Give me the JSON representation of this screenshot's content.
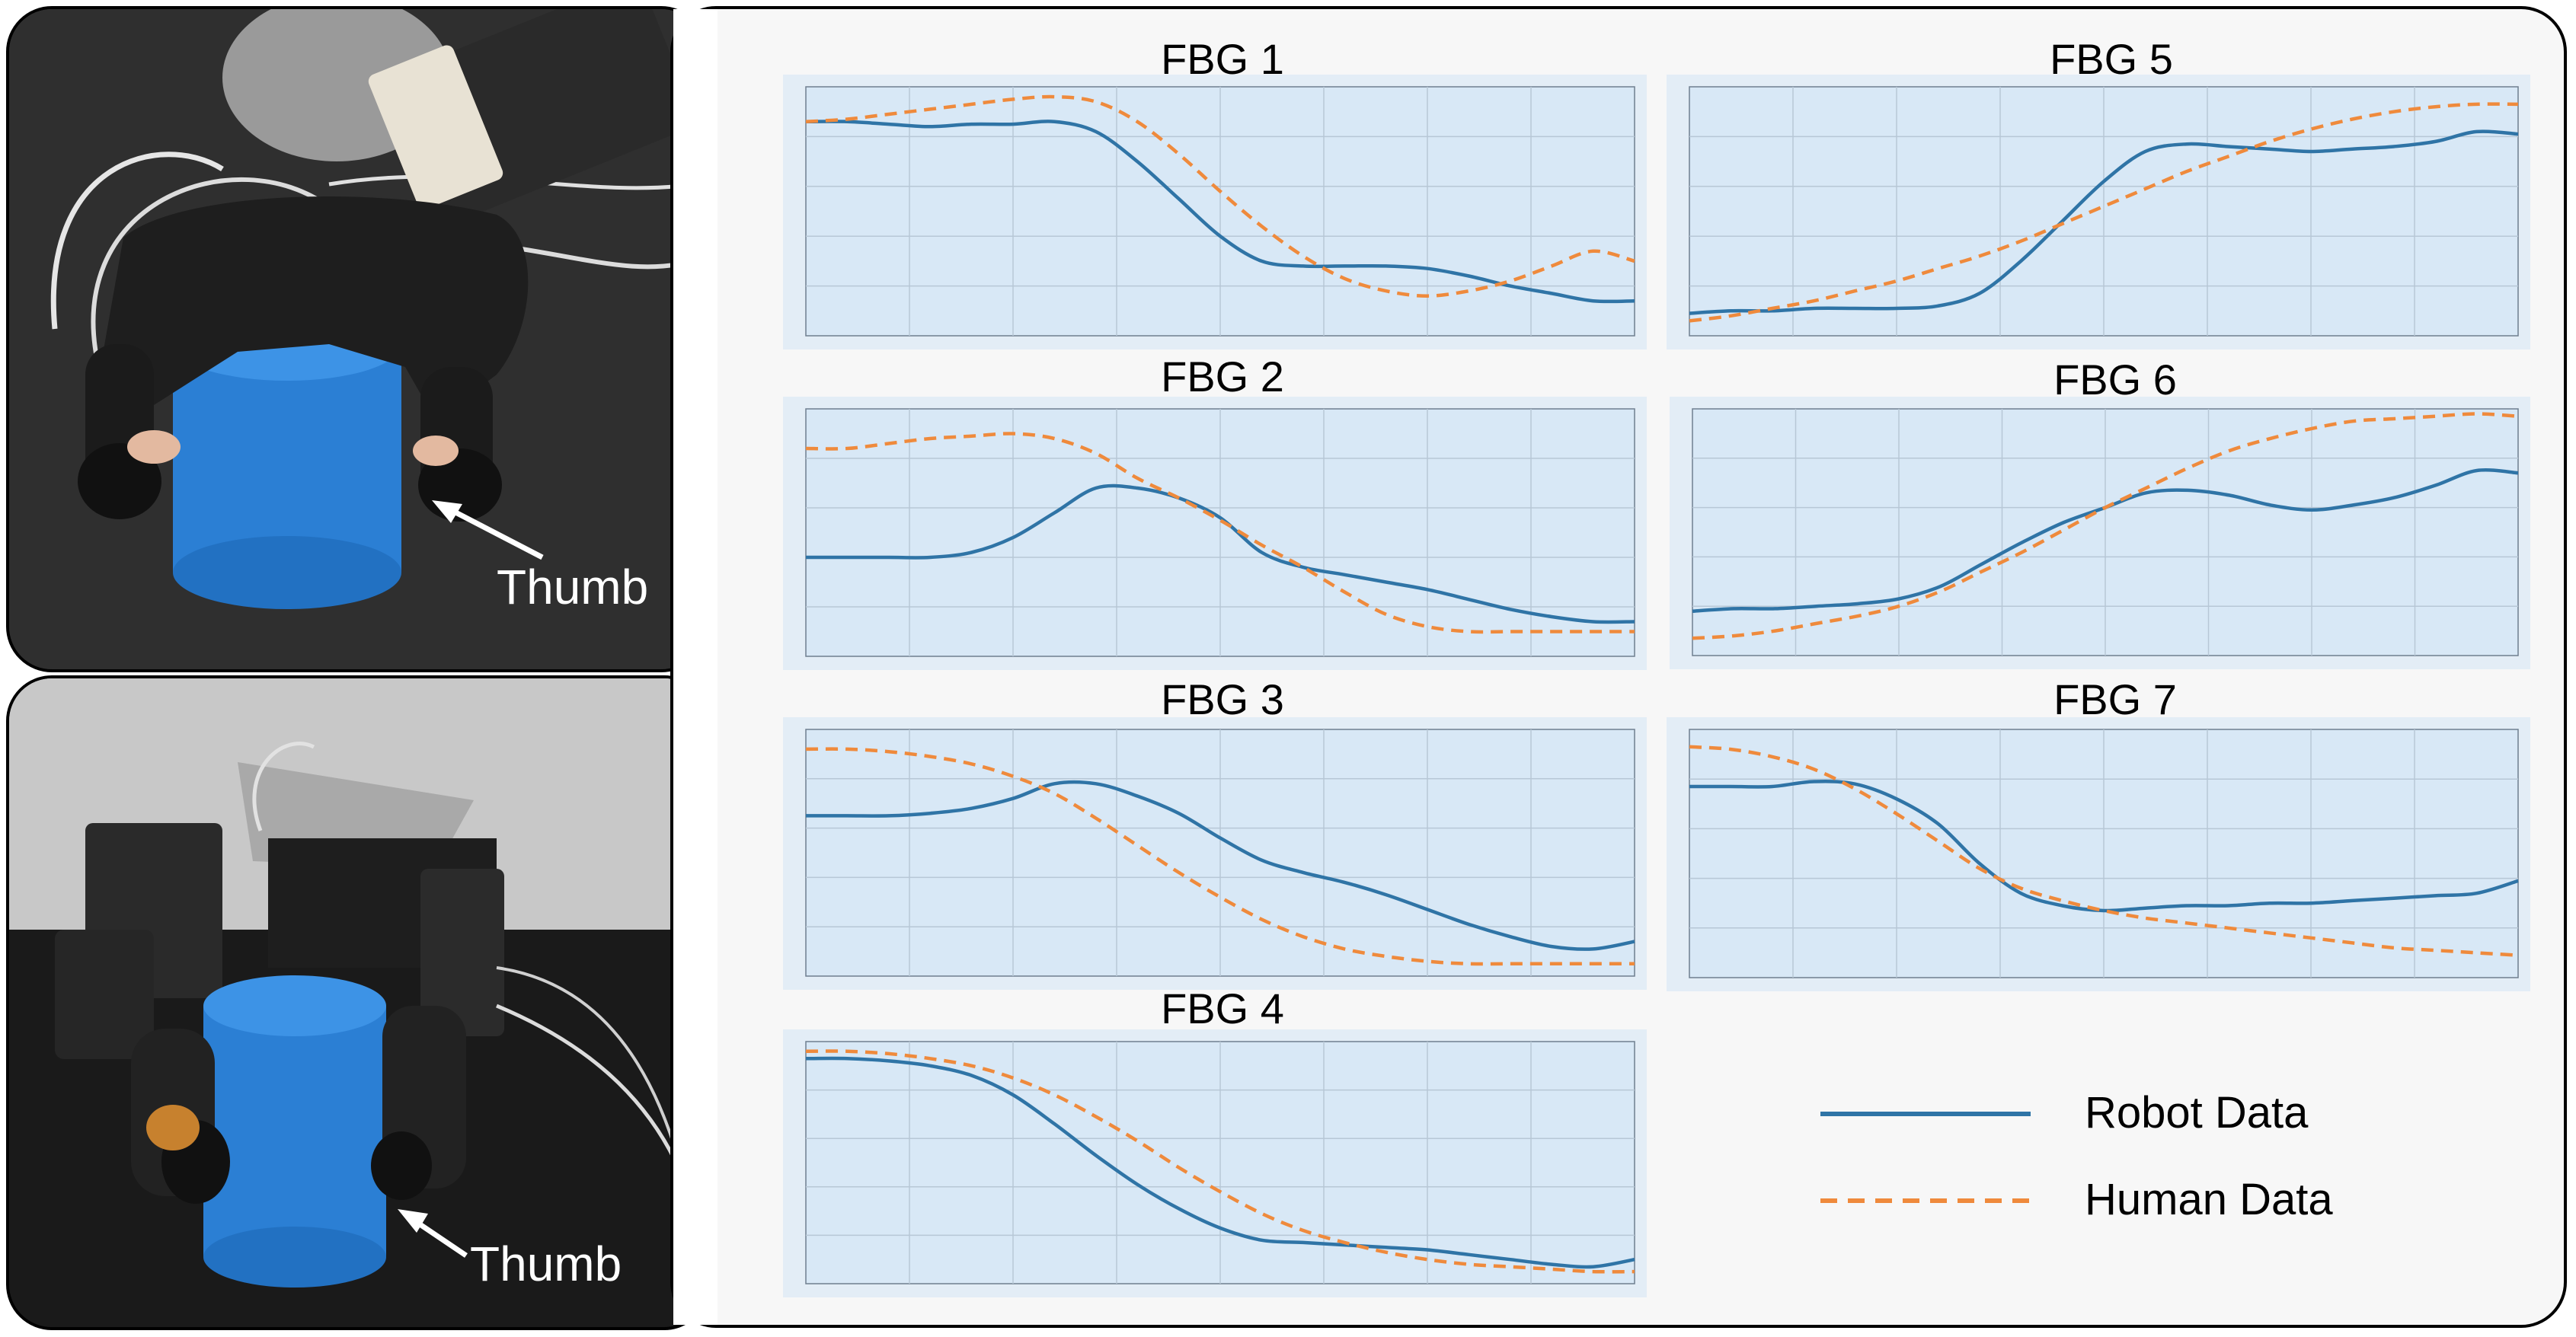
{
  "photos": {
    "top": {
      "thumb_label": "Thumb"
    },
    "bottom": {
      "thumb_label": "Thumb"
    }
  },
  "colors": {
    "robot": "#2f74a6",
    "human": "#ef8a3c",
    "plot_bg": "#d8e8f6",
    "grid": "#b7c7d6"
  },
  "legend": {
    "robot_label": "Robot Data",
    "human_label": "Human Data"
  },
  "chart_data": [
    {
      "type": "line",
      "title": "FBG 1",
      "ylim": [
        0,
        1
      ],
      "grid": true,
      "series": [
        {
          "name": "Robot Data",
          "x": [
            0,
            0.05,
            0.1,
            0.15,
            0.2,
            0.25,
            0.3,
            0.35,
            0.4,
            0.45,
            0.5,
            0.55,
            0.6,
            0.65,
            0.7,
            0.75,
            0.8,
            0.85,
            0.9,
            0.95,
            1.0
          ],
          "values": [
            0.86,
            0.86,
            0.85,
            0.84,
            0.85,
            0.85,
            0.86,
            0.82,
            0.7,
            0.55,
            0.4,
            0.3,
            0.28,
            0.28,
            0.28,
            0.27,
            0.24,
            0.2,
            0.17,
            0.14,
            0.14
          ]
        },
        {
          "name": "Human Data",
          "x": [
            0,
            0.05,
            0.1,
            0.15,
            0.2,
            0.25,
            0.3,
            0.35,
            0.4,
            0.45,
            0.5,
            0.55,
            0.6,
            0.65,
            0.7,
            0.75,
            0.8,
            0.85,
            0.9,
            0.95,
            1.0
          ],
          "values": [
            0.86,
            0.87,
            0.89,
            0.91,
            0.93,
            0.95,
            0.96,
            0.94,
            0.86,
            0.73,
            0.58,
            0.44,
            0.32,
            0.23,
            0.18,
            0.16,
            0.18,
            0.22,
            0.28,
            0.34,
            0.3
          ]
        }
      ]
    },
    {
      "type": "line",
      "title": "FBG 2",
      "ylim": [
        0,
        1
      ],
      "grid": true,
      "series": [
        {
          "name": "Robot Data",
          "x": [
            0,
            0.05,
            0.1,
            0.15,
            0.2,
            0.25,
            0.3,
            0.35,
            0.4,
            0.45,
            0.5,
            0.55,
            0.6,
            0.65,
            0.7,
            0.75,
            0.8,
            0.85,
            0.9,
            0.95,
            1.0
          ],
          "values": [
            0.4,
            0.4,
            0.4,
            0.4,
            0.42,
            0.48,
            0.58,
            0.68,
            0.68,
            0.64,
            0.56,
            0.42,
            0.36,
            0.33,
            0.3,
            0.27,
            0.23,
            0.19,
            0.16,
            0.14,
            0.14
          ]
        },
        {
          "name": "Human Data",
          "x": [
            0,
            0.05,
            0.1,
            0.15,
            0.2,
            0.25,
            0.3,
            0.35,
            0.4,
            0.45,
            0.5,
            0.55,
            0.6,
            0.65,
            0.7,
            0.75,
            0.8,
            0.85,
            0.9,
            0.95,
            1.0
          ],
          "values": [
            0.84,
            0.84,
            0.86,
            0.88,
            0.89,
            0.9,
            0.88,
            0.82,
            0.72,
            0.64,
            0.55,
            0.45,
            0.36,
            0.26,
            0.17,
            0.12,
            0.1,
            0.1,
            0.1,
            0.1,
            0.1
          ]
        }
      ]
    },
    {
      "type": "line",
      "title": "FBG 3",
      "ylim": [
        0,
        1
      ],
      "grid": true,
      "series": [
        {
          "name": "Robot Data",
          "x": [
            0,
            0.05,
            0.1,
            0.15,
            0.2,
            0.25,
            0.3,
            0.35,
            0.4,
            0.45,
            0.5,
            0.55,
            0.6,
            0.65,
            0.7,
            0.75,
            0.8,
            0.85,
            0.9,
            0.95,
            1.0
          ],
          "values": [
            0.65,
            0.65,
            0.65,
            0.66,
            0.68,
            0.72,
            0.78,
            0.78,
            0.73,
            0.66,
            0.56,
            0.47,
            0.42,
            0.38,
            0.33,
            0.27,
            0.21,
            0.16,
            0.12,
            0.11,
            0.14
          ]
        },
        {
          "name": "Human Data",
          "x": [
            0,
            0.05,
            0.1,
            0.15,
            0.2,
            0.25,
            0.3,
            0.35,
            0.4,
            0.45,
            0.5,
            0.55,
            0.6,
            0.65,
            0.7,
            0.75,
            0.8,
            0.85,
            0.9,
            0.95,
            1.0
          ],
          "values": [
            0.92,
            0.92,
            0.91,
            0.89,
            0.86,
            0.81,
            0.74,
            0.64,
            0.53,
            0.42,
            0.32,
            0.23,
            0.16,
            0.11,
            0.08,
            0.06,
            0.05,
            0.05,
            0.05,
            0.05,
            0.05
          ]
        }
      ]
    },
    {
      "type": "line",
      "title": "FBG 4",
      "ylim": [
        0,
        1
      ],
      "grid": true,
      "series": [
        {
          "name": "Robot Data",
          "x": [
            0,
            0.05,
            0.1,
            0.15,
            0.2,
            0.25,
            0.3,
            0.35,
            0.4,
            0.45,
            0.5,
            0.55,
            0.6,
            0.65,
            0.7,
            0.75,
            0.8,
            0.85,
            0.9,
            0.95,
            1.0
          ],
          "values": [
            0.93,
            0.93,
            0.92,
            0.9,
            0.86,
            0.78,
            0.66,
            0.53,
            0.41,
            0.31,
            0.23,
            0.18,
            0.17,
            0.16,
            0.15,
            0.14,
            0.12,
            0.1,
            0.08,
            0.07,
            0.1
          ]
        },
        {
          "name": "Human Data",
          "x": [
            0,
            0.05,
            0.1,
            0.15,
            0.2,
            0.25,
            0.3,
            0.35,
            0.4,
            0.45,
            0.5,
            0.55,
            0.6,
            0.65,
            0.7,
            0.75,
            0.8,
            0.85,
            0.9,
            0.95,
            1.0
          ],
          "values": [
            0.96,
            0.96,
            0.95,
            0.93,
            0.9,
            0.85,
            0.78,
            0.69,
            0.59,
            0.48,
            0.38,
            0.29,
            0.22,
            0.17,
            0.13,
            0.1,
            0.08,
            0.07,
            0.06,
            0.05,
            0.05
          ]
        }
      ]
    },
    {
      "type": "line",
      "title": "FBG 5",
      "ylim": [
        0,
        1
      ],
      "grid": true,
      "series": [
        {
          "name": "Robot Data",
          "x": [
            0,
            0.05,
            0.1,
            0.15,
            0.2,
            0.25,
            0.3,
            0.35,
            0.4,
            0.45,
            0.5,
            0.55,
            0.6,
            0.65,
            0.7,
            0.75,
            0.8,
            0.85,
            0.9,
            0.95,
            1.0
          ],
          "values": [
            0.09,
            0.1,
            0.1,
            0.11,
            0.11,
            0.11,
            0.12,
            0.17,
            0.3,
            0.46,
            0.62,
            0.74,
            0.77,
            0.76,
            0.75,
            0.74,
            0.75,
            0.76,
            0.78,
            0.82,
            0.81
          ]
        },
        {
          "name": "Human Data",
          "x": [
            0,
            0.05,
            0.1,
            0.15,
            0.2,
            0.25,
            0.3,
            0.35,
            0.4,
            0.45,
            0.5,
            0.55,
            0.6,
            0.65,
            0.7,
            0.75,
            0.8,
            0.85,
            0.9,
            0.95,
            1.0
          ],
          "values": [
            0.06,
            0.08,
            0.11,
            0.14,
            0.18,
            0.22,
            0.27,
            0.32,
            0.38,
            0.45,
            0.52,
            0.59,
            0.66,
            0.72,
            0.78,
            0.83,
            0.87,
            0.9,
            0.92,
            0.93,
            0.93
          ]
        }
      ]
    },
    {
      "type": "line",
      "title": "FBG 6",
      "ylim": [
        0,
        1
      ],
      "grid": true,
      "series": [
        {
          "name": "Robot Data",
          "x": [
            0,
            0.05,
            0.1,
            0.15,
            0.2,
            0.25,
            0.3,
            0.35,
            0.4,
            0.45,
            0.5,
            0.55,
            0.6,
            0.65,
            0.7,
            0.75,
            0.8,
            0.85,
            0.9,
            0.95,
            1.0
          ],
          "values": [
            0.18,
            0.19,
            0.19,
            0.2,
            0.21,
            0.23,
            0.28,
            0.37,
            0.46,
            0.54,
            0.6,
            0.66,
            0.67,
            0.65,
            0.61,
            0.59,
            0.61,
            0.64,
            0.69,
            0.75,
            0.74
          ]
        },
        {
          "name": "Human Data",
          "x": [
            0,
            0.05,
            0.1,
            0.15,
            0.2,
            0.25,
            0.3,
            0.35,
            0.4,
            0.45,
            0.5,
            0.55,
            0.6,
            0.65,
            0.7,
            0.75,
            0.8,
            0.85,
            0.9,
            0.95,
            1.0
          ],
          "values": [
            0.07,
            0.08,
            0.1,
            0.13,
            0.16,
            0.2,
            0.26,
            0.34,
            0.42,
            0.51,
            0.6,
            0.68,
            0.76,
            0.83,
            0.88,
            0.92,
            0.95,
            0.96,
            0.97,
            0.98,
            0.97
          ]
        }
      ]
    },
    {
      "type": "line",
      "title": "FBG 7",
      "ylim": [
        0,
        1
      ],
      "grid": true,
      "series": [
        {
          "name": "Robot Data",
          "x": [
            0,
            0.05,
            0.1,
            0.15,
            0.2,
            0.25,
            0.3,
            0.35,
            0.4,
            0.45,
            0.5,
            0.55,
            0.6,
            0.65,
            0.7,
            0.75,
            0.8,
            0.85,
            0.9,
            0.95,
            1.0
          ],
          "values": [
            0.77,
            0.77,
            0.77,
            0.79,
            0.78,
            0.72,
            0.62,
            0.46,
            0.34,
            0.29,
            0.27,
            0.28,
            0.29,
            0.29,
            0.3,
            0.3,
            0.31,
            0.32,
            0.33,
            0.34,
            0.39
          ]
        },
        {
          "name": "Human Data",
          "x": [
            0,
            0.05,
            0.1,
            0.15,
            0.2,
            0.25,
            0.3,
            0.35,
            0.4,
            0.45,
            0.5,
            0.55,
            0.6,
            0.65,
            0.7,
            0.75,
            0.8,
            0.85,
            0.9,
            0.95,
            1.0
          ],
          "values": [
            0.93,
            0.92,
            0.89,
            0.84,
            0.76,
            0.66,
            0.55,
            0.44,
            0.36,
            0.31,
            0.27,
            0.24,
            0.22,
            0.2,
            0.18,
            0.16,
            0.14,
            0.12,
            0.11,
            0.1,
            0.09
          ]
        }
      ]
    }
  ]
}
